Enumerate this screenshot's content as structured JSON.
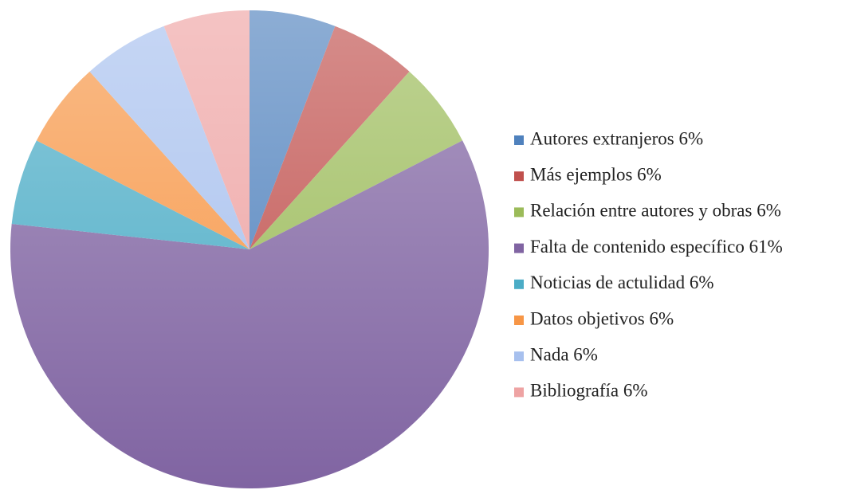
{
  "chart_data": {
    "type": "pie",
    "categories": [
      "Autores extranjeros 6%",
      "Más ejemplos 6%",
      "Relación entre autores y obras 6%",
      "Falta de contenido específico 61%",
      "Noticias de actulidad 6%",
      "Datos objetivos 6%",
      "Nada 6%",
      "Bibliografía 6%"
    ],
    "values": [
      6,
      6,
      6,
      61,
      6,
      6,
      6,
      6
    ],
    "colors": [
      "#4f81bd",
      "#c0504d",
      "#9bbb59",
      "#8064a2",
      "#4bacc6",
      "#f79646",
      "#a7c0ee",
      "#eea3a3"
    ],
    "legend": "right"
  }
}
